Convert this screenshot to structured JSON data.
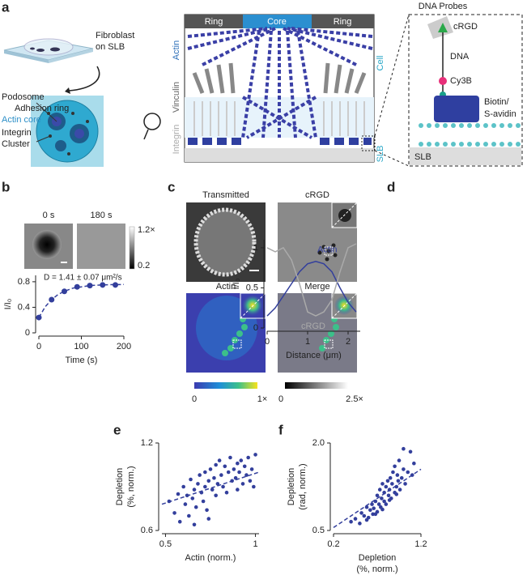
{
  "panel_labels": [
    "a",
    "b",
    "c",
    "d",
    "e",
    "f"
  ],
  "schematic": {
    "slb_note": [
      "Fibroblast",
      "on SLB"
    ],
    "cell_labels": [
      "Podosome",
      "Adhesion ring",
      "Actin core",
      "Integrin",
      "Cluster"
    ],
    "header": [
      "Ring",
      "Core",
      "Ring"
    ],
    "side_labels": [
      "Actin",
      "Vinculin",
      "Integrin"
    ],
    "right_labels": [
      "Cell",
      "SLB"
    ],
    "probe": {
      "title": "DNA Probes",
      "parts": [
        "cRGD",
        "DNA",
        "Cy3B",
        "Biotin/",
        "S-avidin"
      ],
      "base": "SLB"
    }
  },
  "frap_images": {
    "labels": [
      "0 s",
      "180 s"
    ],
    "colorbar": [
      "1.2×",
      "0.2"
    ]
  },
  "micrographs": {
    "labels": [
      "Transmitted",
      "cRGD",
      "Actin",
      "Merge"
    ],
    "colorbars": [
      [
        "0",
        "1×"
      ],
      [
        "0",
        "2.5×"
      ]
    ]
  },
  "chart_data": [
    {
      "type": "line",
      "annotation": "D = 1.41 ± 0.07 μm²/s",
      "xlabel": "Time (s)",
      "ylabel": "I/I₀",
      "xlim": [
        0,
        200
      ],
      "ylim": [
        0,
        0.9
      ],
      "xticks": [
        0,
        100,
        200
      ],
      "yticks": [
        0,
        0.4,
        0.8
      ],
      "series": [
        {
          "color": "#333f9c",
          "style": "markers",
          "x": [
            0,
            30,
            60,
            90,
            120,
            150,
            180
          ],
          "values": [
            0.24,
            0.52,
            0.65,
            0.72,
            0.74,
            0.75,
            0.75
          ]
        },
        {
          "color": "#333f9c",
          "style": "dashed",
          "x": [
            0,
            15,
            30,
            45,
            60,
            80,
            100,
            120,
            150,
            180,
            200
          ],
          "values": [
            0.24,
            0.41,
            0.52,
            0.6,
            0.65,
            0.7,
            0.72,
            0.74,
            0.75,
            0.755,
            0.757
          ]
        }
      ]
    },
    {
      "type": "line",
      "xlabel": "Distance (μm)",
      "ylabel": "I/I₀",
      "xlim": [
        0,
        2.3
      ],
      "ylim": [
        0,
        1.1
      ],
      "xticks": [
        0,
        1,
        2
      ],
      "yticks": [
        0,
        0.5,
        1
      ],
      "x": [
        0,
        0.2,
        0.4,
        0.6,
        0.8,
        1.0,
        1.2,
        1.4,
        1.6,
        1.8,
        2.0,
        2.2
      ],
      "series": [
        {
          "name": "Actin",
          "color": "#333f9c",
          "style": "solid",
          "values": [
            0.15,
            0.25,
            0.4,
            0.55,
            0.7,
            0.8,
            0.83,
            0.8,
            0.7,
            0.5,
            0.32,
            0.2
          ]
        },
        {
          "name": "cRGD",
          "color": "#aaaaaa",
          "style": "solid",
          "values": [
            1.0,
            0.95,
            1.0,
            0.85,
            0.55,
            0.2,
            0.15,
            0.2,
            0.35,
            0.7,
            1.0,
            1.05
          ]
        }
      ]
    },
    {
      "type": "scatter",
      "xlabel": [
        "Actin (norm.)"
      ],
      "ylabel": [
        "Depletion",
        "(%, norm.)"
      ],
      "xlim": [
        0.48,
        1.02
      ],
      "ylim": [
        0.6,
        1.2
      ],
      "xticks": [
        0.5,
        1
      ],
      "yticks": [
        0.6,
        1.2
      ],
      "series": [
        {
          "color": "#333f9c",
          "style": "markers",
          "x": [
            0.52,
            0.55,
            0.57,
            0.58,
            0.6,
            0.61,
            0.62,
            0.63,
            0.64,
            0.65,
            0.66,
            0.67,
            0.68,
            0.69,
            0.7,
            0.71,
            0.72,
            0.72,
            0.73,
            0.74,
            0.75,
            0.76,
            0.77,
            0.78,
            0.78,
            0.79,
            0.8,
            0.81,
            0.82,
            0.83,
            0.84,
            0.85,
            0.86,
            0.87,
            0.88,
            0.89,
            0.9,
            0.9,
            0.91,
            0.92,
            0.93,
            0.94,
            0.95,
            0.96,
            0.97,
            0.98,
            0.99,
            1.0,
            0.66,
            0.74
          ],
          "values": [
            0.8,
            0.72,
            0.85,
            0.66,
            0.9,
            0.78,
            0.84,
            0.7,
            0.95,
            0.82,
            0.88,
            0.76,
            0.92,
            0.98,
            0.86,
            0.8,
            1.0,
            0.9,
            0.74,
            0.94,
            1.02,
            0.88,
            0.96,
            1.05,
            0.84,
            0.92,
            1.08,
            0.98,
            0.9,
            1.04,
            0.86,
            1.0,
            1.1,
            0.94,
            1.02,
            0.96,
            1.06,
            0.88,
            1.0,
            1.08,
            0.92,
            1.04,
            0.98,
            1.1,
            0.94,
            1.02,
            0.9,
            1.12,
            0.64,
            0.68
          ]
        },
        {
          "color": "#333f9c",
          "style": "dashed",
          "x": [
            0.48,
            1.02
          ],
          "values": [
            0.78,
            1.0
          ]
        }
      ]
    },
    {
      "type": "scatter",
      "xlabel": [
        "Depletion",
        "(%, norm.)"
      ],
      "ylabel": [
        "Depletion",
        "(rad, norm.)"
      ],
      "xlim": [
        0.2,
        1.2
      ],
      "ylim": [
        0.5,
        2.0
      ],
      "xticks": [
        0.2,
        1.2
      ],
      "yticks": [
        0.5,
        {
          "value": 2,
          "label": "2.0"
        }
      ],
      "series": [
        {
          "color": "#333f9c",
          "style": "markers",
          "x": [
            0.4,
            0.45,
            0.5,
            0.52,
            0.55,
            0.58,
            0.6,
            0.62,
            0.64,
            0.65,
            0.66,
            0.68,
            0.7,
            0.7,
            0.72,
            0.73,
            0.74,
            0.75,
            0.76,
            0.78,
            0.78,
            0.8,
            0.8,
            0.82,
            0.83,
            0.84,
            0.85,
            0.86,
            0.87,
            0.88,
            0.9,
            0.9,
            0.92,
            0.93,
            0.94,
            0.95,
            0.96,
            0.98,
            1.0,
            1.02,
            1.05,
            1.08,
            1.1,
            1.12,
            0.58,
            0.68,
            0.76,
            0.84,
            0.92,
            1.0
          ],
          "values": [
            0.65,
            0.7,
            0.62,
            0.8,
            0.75,
            0.9,
            0.72,
            0.85,
            0.95,
            0.78,
            0.88,
            1.0,
            0.82,
            1.1,
            0.95,
            1.2,
            0.9,
            1.05,
            1.3,
            1.0,
            1.15,
            1.25,
            0.95,
            1.35,
            1.1,
            1.2,
            1.4,
            1.05,
            1.3,
            1.5,
            1.15,
            1.6,
            1.25,
            1.45,
            1.35,
            1.7,
            1.2,
            1.4,
            1.55,
            1.3,
            1.5,
            1.85,
            1.45,
            1.65,
            0.68,
            0.78,
            0.86,
            1.02,
            1.12,
            1.9
          ]
        },
        {
          "color": "#333f9c",
          "style": "dashed",
          "x": [
            0.2,
            1.2
          ],
          "values": [
            0.55,
            1.55
          ]
        }
      ]
    }
  ]
}
